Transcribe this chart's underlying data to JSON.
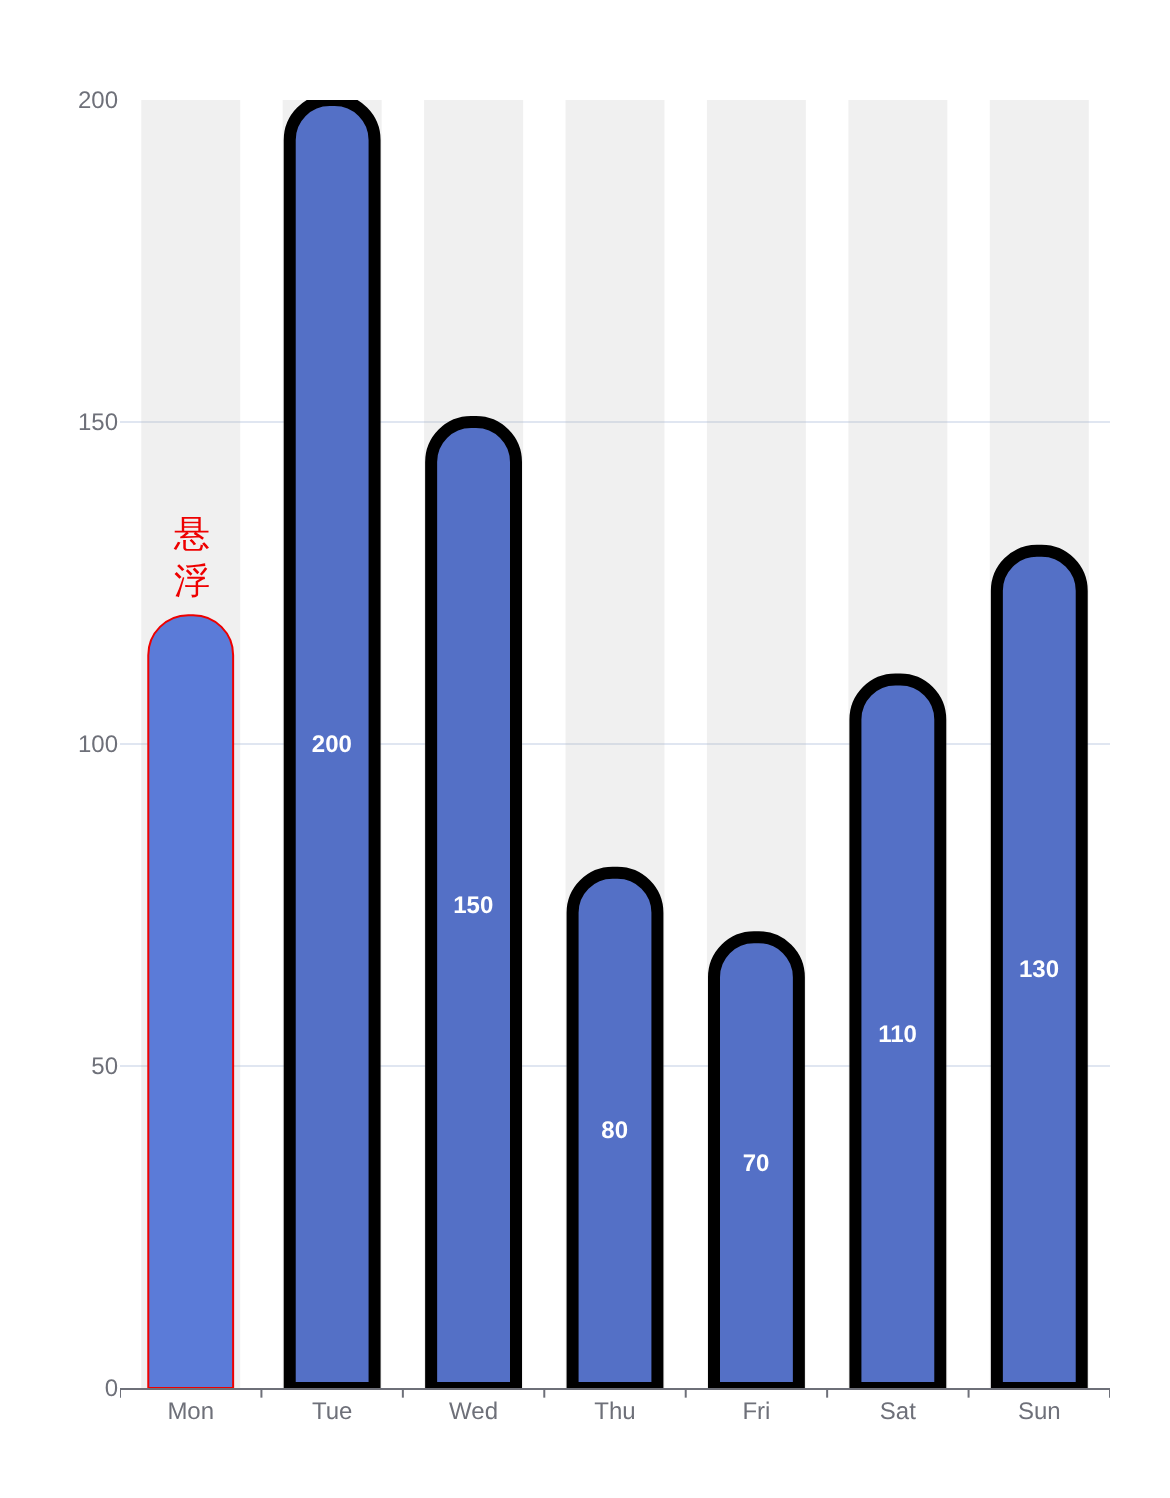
{
  "chart_data": {
    "type": "bar",
    "categories": [
      "Mon",
      "Tue",
      "Wed",
      "Thu",
      "Fri",
      "Sat",
      "Sun"
    ],
    "values": [
      120,
      200,
      150,
      80,
      70,
      110,
      130
    ],
    "colors": [
      "#5b7bd8",
      "#5470c6",
      "#5470c6",
      "#5470c6",
      "#5470c6",
      "#5470c6",
      "#5470c6"
    ],
    "value_labels": [
      null,
      "200",
      "150",
      "80",
      "70",
      "110",
      "130"
    ],
    "ylim": [
      0,
      200
    ],
    "yticks": [
      0,
      50,
      100,
      150,
      200
    ],
    "grid": "y",
    "annotations": [
      {
        "text": "悬浮",
        "x": "Mon",
        "y": 120
      }
    ]
  }
}
